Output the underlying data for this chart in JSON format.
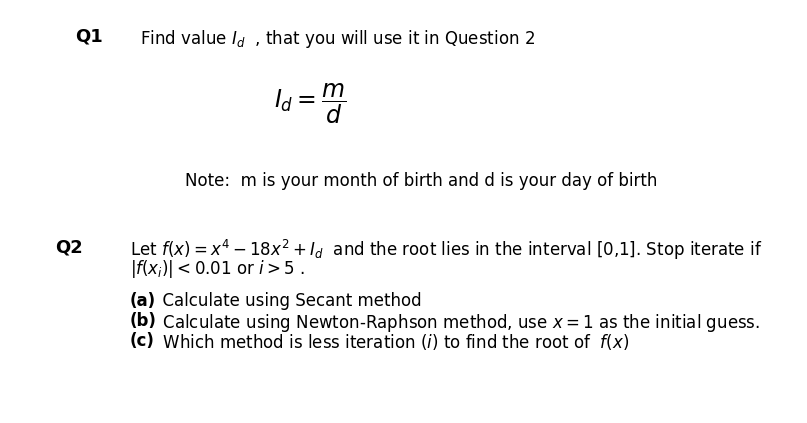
{
  "background_color": "#ffffff",
  "q1_label": "Q1",
  "q1_text": "Find value $I_d$  , that you will use it in Question 2",
  "formula": "$I_d = \\dfrac{m}{d}$",
  "note_text": "Note:  m is your month of birth and d is your day of birth",
  "q2_label": "Q2",
  "q2_line1": "Let $f(x) = x^4 - 18x^2 + I_d$  and the root lies in the interval [0,1]. Stop iterate if",
  "q2_line2": "$|f(x_i)| < 0.01$ or $i > 5$ .",
  "q2a_bold": "(a)",
  "q2a_rest": "  Calculate using Secant method",
  "q2b_bold": "(b)",
  "q2b_rest": "  Calculate using Newton-Raphson method, use $x = 1$ as the initial guess.",
  "q2c_bold": "(c)",
  "q2c_rest": "  Which method is less iteration $(i)$ to find the root of  $f(x)$",
  "font_size_q": 13,
  "font_size_body": 12,
  "font_size_formula": 17
}
